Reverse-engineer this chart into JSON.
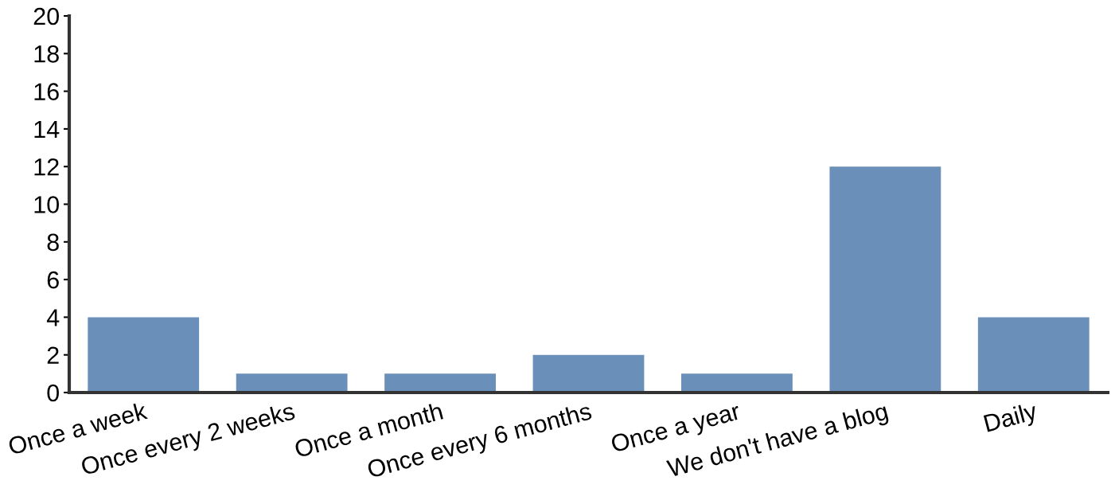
{
  "chart_data": {
    "type": "bar",
    "categories": [
      "Once a week",
      "Once every 2 weeks",
      "Once a month",
      "Once every 6 months",
      "Once a year",
      "We don't have a blog",
      "Daily"
    ],
    "values": [
      4,
      1,
      1,
      2,
      1,
      12,
      4
    ],
    "color": "#6a8fb8",
    "ylim": [
      0,
      20
    ],
    "yticks": [
      0,
      2,
      4,
      6,
      8,
      10,
      12,
      14,
      16,
      18,
      20
    ],
    "grid": false
  }
}
